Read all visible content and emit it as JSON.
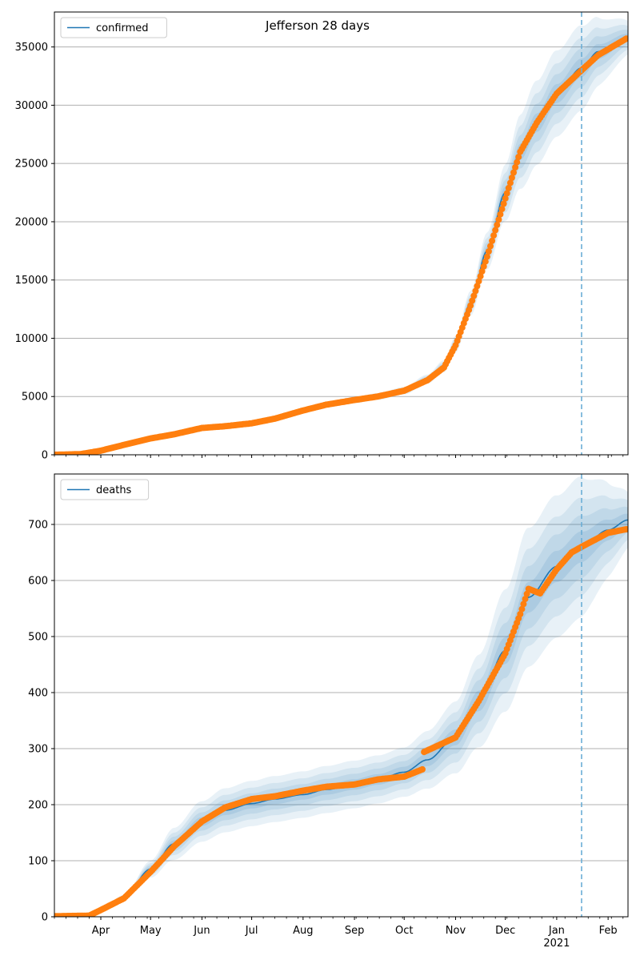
{
  "chart_data": {
    "title": "Jefferson 28 days",
    "x_ticks": [
      {
        "label": "Apr",
        "date": "2020-04-01"
      },
      {
        "label": "May",
        "date": "2020-05-01"
      },
      {
        "label": "Jun",
        "date": "2020-06-01"
      },
      {
        "label": "Jul",
        "date": "2020-07-01"
      },
      {
        "label": "Aug",
        "date": "2020-08-01"
      },
      {
        "label": "Sep",
        "date": "2020-09-01"
      },
      {
        "label": "Oct",
        "date": "2020-10-01"
      },
      {
        "label": "Nov",
        "date": "2020-11-01"
      },
      {
        "label": "Dec",
        "date": "2020-12-01"
      },
      {
        "label": "Jan",
        "date": "2021-01-01"
      },
      {
        "label": "Feb",
        "date": "2021-02-01"
      }
    ],
    "year_label": {
      "label": "2021",
      "date": "2021-01-01"
    },
    "xlim": [
      "2020-03-04",
      "2021-02-13"
    ],
    "forecast_start": "2021-01-16",
    "grid": "horizontal",
    "legend_position": "top-left",
    "colors": {
      "fit": "#1f77b4",
      "observed": "#ff7f0e",
      "band": "#1f77b4",
      "forecast_line": "#6baed6",
      "grid": "#b0b0b0"
    },
    "panels": [
      {
        "name": "confirmed-panel",
        "legend": "confirmed",
        "type": "line",
        "ylim": [
          0,
          38000
        ],
        "yticks": [
          0,
          5000,
          10000,
          15000,
          20000,
          25000,
          30000,
          35000
        ],
        "fit_knots": [
          [
            "2020-03-04",
            0
          ],
          [
            "2020-03-20",
            60
          ],
          [
            "2020-04-01",
            400
          ],
          [
            "2020-04-15",
            900
          ],
          [
            "2020-05-01",
            1400
          ],
          [
            "2020-05-15",
            1800
          ],
          [
            "2020-06-01",
            2300
          ],
          [
            "2020-06-15",
            2500
          ],
          [
            "2020-07-01",
            2700
          ],
          [
            "2020-07-15",
            3100
          ],
          [
            "2020-08-01",
            3800
          ],
          [
            "2020-08-15",
            4300
          ],
          [
            "2020-09-01",
            4700
          ],
          [
            "2020-09-15",
            5000
          ],
          [
            "2020-10-01",
            5500
          ],
          [
            "2020-10-15",
            6500
          ],
          [
            "2020-10-25",
            7600
          ],
          [
            "2020-11-01",
            9500
          ],
          [
            "2020-11-10",
            13000
          ],
          [
            "2020-11-20",
            17500
          ],
          [
            "2020-12-01",
            22500
          ],
          [
            "2020-12-10",
            26000
          ],
          [
            "2020-12-20",
            28500
          ],
          [
            "2021-01-01",
            31000
          ],
          [
            "2021-01-16",
            33200
          ],
          [
            "2021-01-26",
            34600
          ],
          [
            "2021-02-13",
            35800
          ]
        ],
        "band_widths": [
          [
            "2020-03-04",
            0
          ],
          [
            "2020-07-01",
            0.05
          ],
          [
            "2020-10-15",
            0.06
          ],
          [
            "2020-11-20",
            0.09
          ],
          [
            "2020-12-15",
            0.13
          ],
          [
            "2021-01-16",
            0.11
          ],
          [
            "2021-02-13",
            0.04
          ]
        ],
        "observed_knots": [
          [
            "2020-03-04",
            0
          ],
          [
            "2020-03-20",
            60
          ],
          [
            "2020-04-01",
            350
          ],
          [
            "2020-04-15",
            850
          ],
          [
            "2020-05-01",
            1400
          ],
          [
            "2020-05-15",
            1750
          ],
          [
            "2020-06-01",
            2300
          ],
          [
            "2020-06-15",
            2450
          ],
          [
            "2020-07-01",
            2700
          ],
          [
            "2020-07-15",
            3100
          ],
          [
            "2020-08-01",
            3800
          ],
          [
            "2020-08-15",
            4300
          ],
          [
            "2020-09-01",
            4700
          ],
          [
            "2020-09-15",
            5000
          ],
          [
            "2020-10-01",
            5500
          ],
          [
            "2020-10-15",
            6400
          ],
          [
            "2020-10-25",
            7500
          ],
          [
            "2020-11-01",
            9400
          ],
          [
            "2020-11-10",
            12800
          ],
          [
            "2020-11-20",
            17000
          ],
          [
            "2020-12-01",
            22000
          ],
          [
            "2020-12-10",
            26000
          ],
          [
            "2020-12-20",
            28500
          ],
          [
            "2021-01-01",
            31000
          ],
          [
            "2021-01-16",
            33000
          ],
          [
            "2021-01-26",
            34300
          ],
          [
            "2021-02-13",
            35800
          ]
        ]
      },
      {
        "name": "deaths-panel",
        "legend": "deaths",
        "type": "line",
        "ylim": [
          0,
          790
        ],
        "yticks": [
          0,
          100,
          200,
          300,
          400,
          500,
          600,
          700
        ],
        "fit_knots": [
          [
            "2020-03-04",
            0
          ],
          [
            "2020-03-25",
            2
          ],
          [
            "2020-04-01",
            12
          ],
          [
            "2020-04-15",
            35
          ],
          [
            "2020-05-01",
            85
          ],
          [
            "2020-05-15",
            130
          ],
          [
            "2020-06-01",
            170
          ],
          [
            "2020-06-15",
            190
          ],
          [
            "2020-07-01",
            202
          ],
          [
            "2020-07-15",
            210
          ],
          [
            "2020-08-01",
            218
          ],
          [
            "2020-08-15",
            227
          ],
          [
            "2020-09-01",
            236
          ],
          [
            "2020-09-15",
            245
          ],
          [
            "2020-10-01",
            258
          ],
          [
            "2020-10-15",
            280
          ],
          [
            "2020-11-01",
            320
          ],
          [
            "2020-11-15",
            385
          ],
          [
            "2020-12-01",
            475
          ],
          [
            "2020-12-15",
            570
          ],
          [
            "2021-01-01",
            625
          ],
          [
            "2021-01-16",
            660
          ],
          [
            "2021-02-01",
            690
          ],
          [
            "2021-02-13",
            708
          ]
        ],
        "band_widths": [
          [
            "2020-03-04",
            0
          ],
          [
            "2020-05-15",
            0.22
          ],
          [
            "2020-07-01",
            0.2
          ],
          [
            "2020-10-01",
            0.17
          ],
          [
            "2020-12-01",
            0.23
          ],
          [
            "2021-01-16",
            0.19
          ],
          [
            "2021-02-13",
            0.07
          ]
        ],
        "observed_knots": [
          [
            "2020-03-04",
            1
          ],
          [
            "2020-03-25",
            2
          ],
          [
            "2020-04-01",
            12
          ],
          [
            "2020-04-15",
            33
          ],
          [
            "2020-05-01",
            80
          ],
          [
            "2020-05-15",
            125
          ],
          [
            "2020-06-01",
            170
          ],
          [
            "2020-06-15",
            195
          ],
          [
            "2020-07-01",
            210
          ],
          [
            "2020-07-15",
            215
          ],
          [
            "2020-08-01",
            225
          ],
          [
            "2020-08-15",
            232
          ],
          [
            "2020-09-01",
            236
          ],
          [
            "2020-09-15",
            245
          ],
          [
            "2020-10-01",
            250
          ],
          [
            "2020-10-12",
            263
          ],
          [
            "2020-10-13",
            294
          ],
          [
            "2020-11-01",
            320
          ],
          [
            "2020-11-15",
            385
          ],
          [
            "2020-12-01",
            470
          ],
          [
            "2020-12-10",
            540
          ],
          [
            "2020-12-15",
            585
          ],
          [
            "2020-12-22",
            577
          ],
          [
            "2021-01-01",
            620
          ],
          [
            "2021-01-10",
            650
          ],
          [
            "2021-01-16",
            660
          ],
          [
            "2021-02-01",
            685
          ],
          [
            "2021-02-13",
            692
          ]
        ]
      }
    ]
  }
}
